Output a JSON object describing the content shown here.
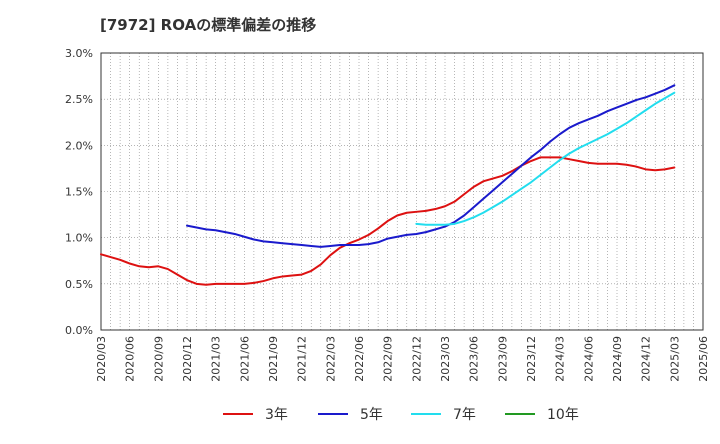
{
  "chart_data": {
    "type": "line",
    "title": "[7972]  ROAの標準偏差の推移",
    "xlabel": "",
    "ylabel": "",
    "x": [
      "2020/03",
      "2020/06",
      "2020/09",
      "2020/12",
      "2021/03",
      "2021/06",
      "2021/09",
      "2021/12",
      "2022/03",
      "2022/06",
      "2022/09",
      "2022/12",
      "2023/03",
      "2023/06",
      "2023/09",
      "2023/12",
      "2024/03",
      "2024/06",
      "2024/09",
      "2024/12",
      "2025/03",
      "2025/06"
    ],
    "y_ticks": [
      "0.0%",
      "0.5%",
      "1.0%",
      "1.5%",
      "2.0%",
      "2.5%",
      "3.0%"
    ],
    "ylim": [
      0,
      3.0
    ],
    "grid": true,
    "legend_position": "bottom",
    "series": [
      {
        "name": "3年",
        "color": "#dd1111",
        "points": [
          [
            "2020/03",
            0.82
          ],
          [
            "2020/04",
            0.79
          ],
          [
            "2020/05",
            0.76
          ],
          [
            "2020/06",
            0.72
          ],
          [
            "2020/07",
            0.69
          ],
          [
            "2020/08",
            0.68
          ],
          [
            "2020/09",
            0.69
          ],
          [
            "2020/10",
            0.66
          ],
          [
            "2020/11",
            0.6
          ],
          [
            "2020/12",
            0.54
          ],
          [
            "2021/01",
            0.5
          ],
          [
            "2021/02",
            0.49
          ],
          [
            "2021/03",
            0.5
          ],
          [
            "2021/04",
            0.5
          ],
          [
            "2021/05",
            0.5
          ],
          [
            "2021/06",
            0.5
          ],
          [
            "2021/07",
            0.51
          ],
          [
            "2021/08",
            0.53
          ],
          [
            "2021/09",
            0.56
          ],
          [
            "2021/10",
            0.58
          ],
          [
            "2021/11",
            0.59
          ],
          [
            "2021/12",
            0.6
          ],
          [
            "2022/01",
            0.64
          ],
          [
            "2022/02",
            0.71
          ],
          [
            "2022/03",
            0.81
          ],
          [
            "2022/04",
            0.89
          ],
          [
            "2022/05",
            0.94
          ],
          [
            "2022/06",
            0.98
          ],
          [
            "2022/07",
            1.03
          ],
          [
            "2022/08",
            1.1
          ],
          [
            "2022/09",
            1.18
          ],
          [
            "2022/10",
            1.24
          ],
          [
            "2022/11",
            1.27
          ],
          [
            "2022/12",
            1.28
          ],
          [
            "2023/01",
            1.29
          ],
          [
            "2023/02",
            1.31
          ],
          [
            "2023/03",
            1.34
          ],
          [
            "2023/04",
            1.39
          ],
          [
            "2023/05",
            1.47
          ],
          [
            "2023/06",
            1.55
          ],
          [
            "2023/07",
            1.61
          ],
          [
            "2023/08",
            1.64
          ],
          [
            "2023/09",
            1.67
          ],
          [
            "2023/10",
            1.72
          ],
          [
            "2023/11",
            1.78
          ],
          [
            "2023/12",
            1.83
          ],
          [
            "2024/01",
            1.87
          ],
          [
            "2024/02",
            1.87
          ],
          [
            "2024/03",
            1.87
          ],
          [
            "2024/04",
            1.85
          ],
          [
            "2024/05",
            1.83
          ],
          [
            "2024/06",
            1.81
          ],
          [
            "2024/07",
            1.8
          ],
          [
            "2024/08",
            1.8
          ],
          [
            "2024/09",
            1.8
          ],
          [
            "2024/10",
            1.79
          ],
          [
            "2024/11",
            1.77
          ],
          [
            "2024/12",
            1.74
          ],
          [
            "2025/01",
            1.73
          ],
          [
            "2025/02",
            1.74
          ],
          [
            "2025/03",
            1.76
          ]
        ]
      },
      {
        "name": "5年",
        "color": "#1a1acc",
        "points": [
          [
            "2020/12",
            1.13
          ],
          [
            "2021/01",
            1.11
          ],
          [
            "2021/02",
            1.09
          ],
          [
            "2021/03",
            1.08
          ],
          [
            "2021/04",
            1.06
          ],
          [
            "2021/05",
            1.04
          ],
          [
            "2021/06",
            1.01
          ],
          [
            "2021/07",
            0.98
          ],
          [
            "2021/08",
            0.96
          ],
          [
            "2021/09",
            0.95
          ],
          [
            "2021/10",
            0.94
          ],
          [
            "2021/11",
            0.93
          ],
          [
            "2021/12",
            0.92
          ],
          [
            "2022/01",
            0.91
          ],
          [
            "2022/02",
            0.9
          ],
          [
            "2022/03",
            0.91
          ],
          [
            "2022/04",
            0.92
          ],
          [
            "2022/05",
            0.92
          ],
          [
            "2022/06",
            0.92
          ],
          [
            "2022/07",
            0.93
          ],
          [
            "2022/08",
            0.95
          ],
          [
            "2022/09",
            0.99
          ],
          [
            "2022/10",
            1.01
          ],
          [
            "2022/11",
            1.03
          ],
          [
            "2022/12",
            1.04
          ],
          [
            "2023/01",
            1.06
          ],
          [
            "2023/02",
            1.09
          ],
          [
            "2023/03",
            1.12
          ],
          [
            "2023/04",
            1.17
          ],
          [
            "2023/05",
            1.24
          ],
          [
            "2023/06",
            1.33
          ],
          [
            "2023/07",
            1.42
          ],
          [
            "2023/08",
            1.51
          ],
          [
            "2023/09",
            1.6
          ],
          [
            "2023/10",
            1.69
          ],
          [
            "2023/11",
            1.78
          ],
          [
            "2023/12",
            1.87
          ],
          [
            "2024/01",
            1.95
          ],
          [
            "2024/02",
            2.04
          ],
          [
            "2024/03",
            2.12
          ],
          [
            "2024/04",
            2.19
          ],
          [
            "2024/05",
            2.24
          ],
          [
            "2024/06",
            2.28
          ],
          [
            "2024/07",
            2.32
          ],
          [
            "2024/08",
            2.37
          ],
          [
            "2024/09",
            2.41
          ],
          [
            "2024/10",
            2.45
          ],
          [
            "2024/11",
            2.49
          ],
          [
            "2024/12",
            2.52
          ],
          [
            "2025/01",
            2.56
          ],
          [
            "2025/02",
            2.6
          ],
          [
            "2025/03",
            2.65
          ]
        ]
      },
      {
        "name": "7年",
        "color": "#22ddee",
        "points": [
          [
            "2022/12",
            1.15
          ],
          [
            "2023/01",
            1.14
          ],
          [
            "2023/02",
            1.14
          ],
          [
            "2023/03",
            1.14
          ],
          [
            "2023/04",
            1.15
          ],
          [
            "2023/05",
            1.18
          ],
          [
            "2023/06",
            1.22
          ],
          [
            "2023/07",
            1.27
          ],
          [
            "2023/08",
            1.33
          ],
          [
            "2023/09",
            1.39
          ],
          [
            "2023/10",
            1.46
          ],
          [
            "2023/11",
            1.53
          ],
          [
            "2023/12",
            1.6
          ],
          [
            "2024/01",
            1.68
          ],
          [
            "2024/02",
            1.76
          ],
          [
            "2024/03",
            1.84
          ],
          [
            "2024/04",
            1.91
          ],
          [
            "2024/05",
            1.97
          ],
          [
            "2024/06",
            2.02
          ],
          [
            "2024/07",
            2.07
          ],
          [
            "2024/08",
            2.12
          ],
          [
            "2024/09",
            2.18
          ],
          [
            "2024/10",
            2.24
          ],
          [
            "2024/11",
            2.31
          ],
          [
            "2024/12",
            2.38
          ],
          [
            "2025/01",
            2.45
          ],
          [
            "2025/02",
            2.51
          ],
          [
            "2025/03",
            2.57
          ]
        ]
      },
      {
        "name": "10年",
        "color": "#229922",
        "points": []
      }
    ]
  }
}
